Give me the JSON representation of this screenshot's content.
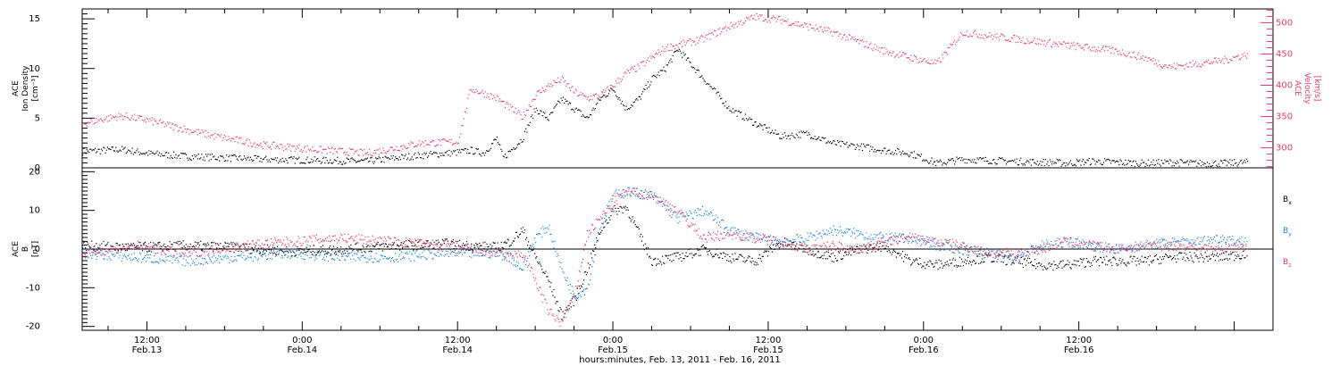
{
  "chart_data": [
    {
      "type": "scatter",
      "panel": "top",
      "ylabel_left": [
        "ACE",
        "Ion Density",
        "[cm⁻³]"
      ],
      "ylabel_right": [
        "ACE",
        "Velocity",
        "[km/s]"
      ],
      "ylim_left": [
        0,
        16
      ],
      "ylim_right": [
        268,
        522
      ],
      "yticks_left": [
        "0",
        "5",
        "10",
        "15"
      ],
      "yticks_right": [
        "300",
        "350",
        "400",
        "450",
        "500"
      ],
      "grid": false,
      "series": [
        {
          "color": "#000000",
          "axis": "left",
          "x": [
            0,
            3,
            5,
            8,
            10,
            14,
            18,
            22,
            26,
            29,
            30,
            31,
            32,
            32.5,
            33,
            34,
            35,
            36,
            37,
            38,
            39,
            40,
            41,
            42,
            43,
            44,
            45,
            46,
            47,
            48,
            50,
            52,
            54,
            56,
            57,
            58,
            60,
            62,
            64,
            66,
            68,
            70,
            72,
            74,
            75,
            76,
            77,
            78,
            80,
            82,
            84,
            86,
            88,
            90
          ],
          "y": [
            1.7,
            1.9,
            1.5,
            1.2,
            1.1,
            0.9,
            0.8,
            0.7,
            1.3,
            1.6,
            1.8,
            1.5,
            3,
            1,
            1.7,
            3,
            6,
            5,
            7,
            6,
            5,
            7,
            8,
            6,
            7,
            9,
            10,
            12,
            10.5,
            9,
            6,
            4.5,
            3.2,
            3.5,
            3.0,
            2.5,
            2.2,
            1.8,
            1.5,
            0.5,
            0.9,
            0.8,
            0.7,
            0.6,
            0.6,
            0.5,
            0.6,
            0.7,
            0.6,
            0.5,
            0.6,
            0.5,
            0.5,
            0.6
          ]
        },
        {
          "color": "#e83a6a",
          "axis": "right",
          "x": [
            0,
            3,
            5,
            8,
            10,
            14,
            18,
            22,
            24,
            26,
            29,
            30,
            31,
            32,
            33,
            34,
            35,
            36,
            37,
            38,
            39,
            40,
            41,
            42,
            43,
            44,
            45,
            46,
            48,
            50,
            52,
            54,
            56,
            58,
            60,
            62,
            64,
            66,
            68,
            70,
            72,
            74,
            76,
            78,
            80,
            82,
            84,
            86,
            88,
            90
          ],
          "y": [
            340,
            352,
            345,
            330,
            320,
            305,
            298,
            292,
            300,
            308,
            310,
            395,
            388,
            380,
            365,
            350,
            385,
            400,
            410,
            390,
            380,
            385,
            400,
            420,
            430,
            445,
            460,
            465,
            475,
            495,
            510,
            505,
            495,
            485,
            470,
            455,
            445,
            435,
            485,
            480,
            475,
            470,
            465,
            460,
            455,
            445,
            430,
            435,
            440,
            450
          ]
        }
      ]
    },
    {
      "type": "scatter",
      "panel": "bottom",
      "ylabel_left": [
        "ACE",
        "B",
        "[nT]"
      ],
      "ylim": [
        -21,
        21
      ],
      "yticks": [
        "-20",
        "-10",
        "0",
        "10",
        "20"
      ],
      "legend_placement": "right",
      "xtick_labels": [
        [
          "12:00",
          "Feb.13"
        ],
        [
          "0:00",
          "Feb.14"
        ],
        [
          "12:00",
          "Feb.14"
        ],
        [
          "0:00",
          "Feb.15"
        ],
        [
          "12:00",
          "Feb.15"
        ],
        [
          "0:00",
          "Feb.16"
        ],
        [
          "12:00",
          "Feb.16"
        ]
      ],
      "xticks_hours": [
        12,
        24,
        36,
        48,
        60,
        72,
        84
      ],
      "xlabel": "hours:minutes, Feb. 13, 2011 - Feb. 16, 2011",
      "xlim_hours": [
        7,
        99
      ],
      "data_end_hour": 90,
      "grid": false,
      "series": [
        {
          "name": "Bx",
          "label_parts": [
            "B",
            "x"
          ],
          "color": "#000000",
          "x": [
            0,
            4,
            8,
            12,
            16,
            20,
            24,
            28,
            32,
            33,
            34,
            35,
            36,
            37,
            38,
            39,
            40,
            41,
            42,
            44,
            46,
            48,
            50,
            52,
            54,
            56,
            58,
            60,
            62,
            64,
            66,
            68,
            70,
            72,
            74,
            76,
            78,
            80,
            82,
            84,
            86,
            88,
            90
          ],
          "y": [
            1,
            0.5,
            1,
            0.5,
            -0.5,
            0,
            1,
            1.5,
            0.5,
            2,
            5,
            -2,
            -8,
            -17,
            -13,
            -5,
            5,
            10,
            11,
            -3,
            -2,
            0,
            -2,
            -3,
            2,
            0,
            -2,
            0,
            1,
            -3,
            -4,
            -3,
            -2,
            -3,
            -4,
            -4,
            -3,
            -3,
            -3,
            -2,
            -2,
            -2,
            -1
          ]
        },
        {
          "name": "By",
          "label_parts": [
            "B",
            "y"
          ],
          "color": "#1a86e0",
          "x": [
            0,
            4,
            8,
            12,
            16,
            20,
            24,
            28,
            32,
            33,
            34,
            35,
            36,
            37,
            38,
            39,
            40,
            41,
            42,
            44,
            46,
            48,
            50,
            52,
            54,
            56,
            58,
            60,
            62,
            64,
            66,
            68,
            70,
            72,
            74,
            76,
            78,
            80,
            82,
            84,
            86,
            88,
            90
          ],
          "y": [
            -1,
            -2,
            -3,
            -2,
            -1,
            -2,
            -2,
            -1,
            -1,
            -2,
            -5,
            3,
            6,
            -5,
            -12,
            -10,
            6,
            14,
            15,
            14,
            8,
            10,
            5,
            3,
            2,
            3,
            5,
            4,
            3,
            3,
            1,
            0,
            -1,
            -2,
            1,
            2,
            1,
            0,
            1,
            2,
            2,
            3,
            2
          ]
        },
        {
          "name": "Bz",
          "label_parts": [
            "B",
            "z"
          ],
          "color": "#e83a6a",
          "x": [
            0,
            4,
            8,
            12,
            16,
            20,
            24,
            28,
            32,
            33,
            34,
            35,
            36,
            37,
            38,
            39,
            40,
            41,
            42,
            44,
            46,
            48,
            50,
            52,
            54,
            56,
            58,
            60,
            62,
            64,
            66,
            68,
            70,
            72,
            74,
            76,
            78,
            80,
            82,
            84,
            86,
            88,
            90
          ],
          "y": [
            -1,
            1,
            -1,
            1,
            2,
            3,
            2,
            1,
            -1,
            -2,
            -1,
            -8,
            -16,
            -19,
            -12,
            4,
            8,
            12,
            15,
            14,
            10,
            3,
            4,
            3,
            2,
            0,
            1,
            0,
            2,
            3,
            2,
            1,
            -1,
            -1,
            0,
            2,
            1,
            0,
            1,
            1,
            1,
            0,
            1
          ]
        }
      ]
    }
  ]
}
